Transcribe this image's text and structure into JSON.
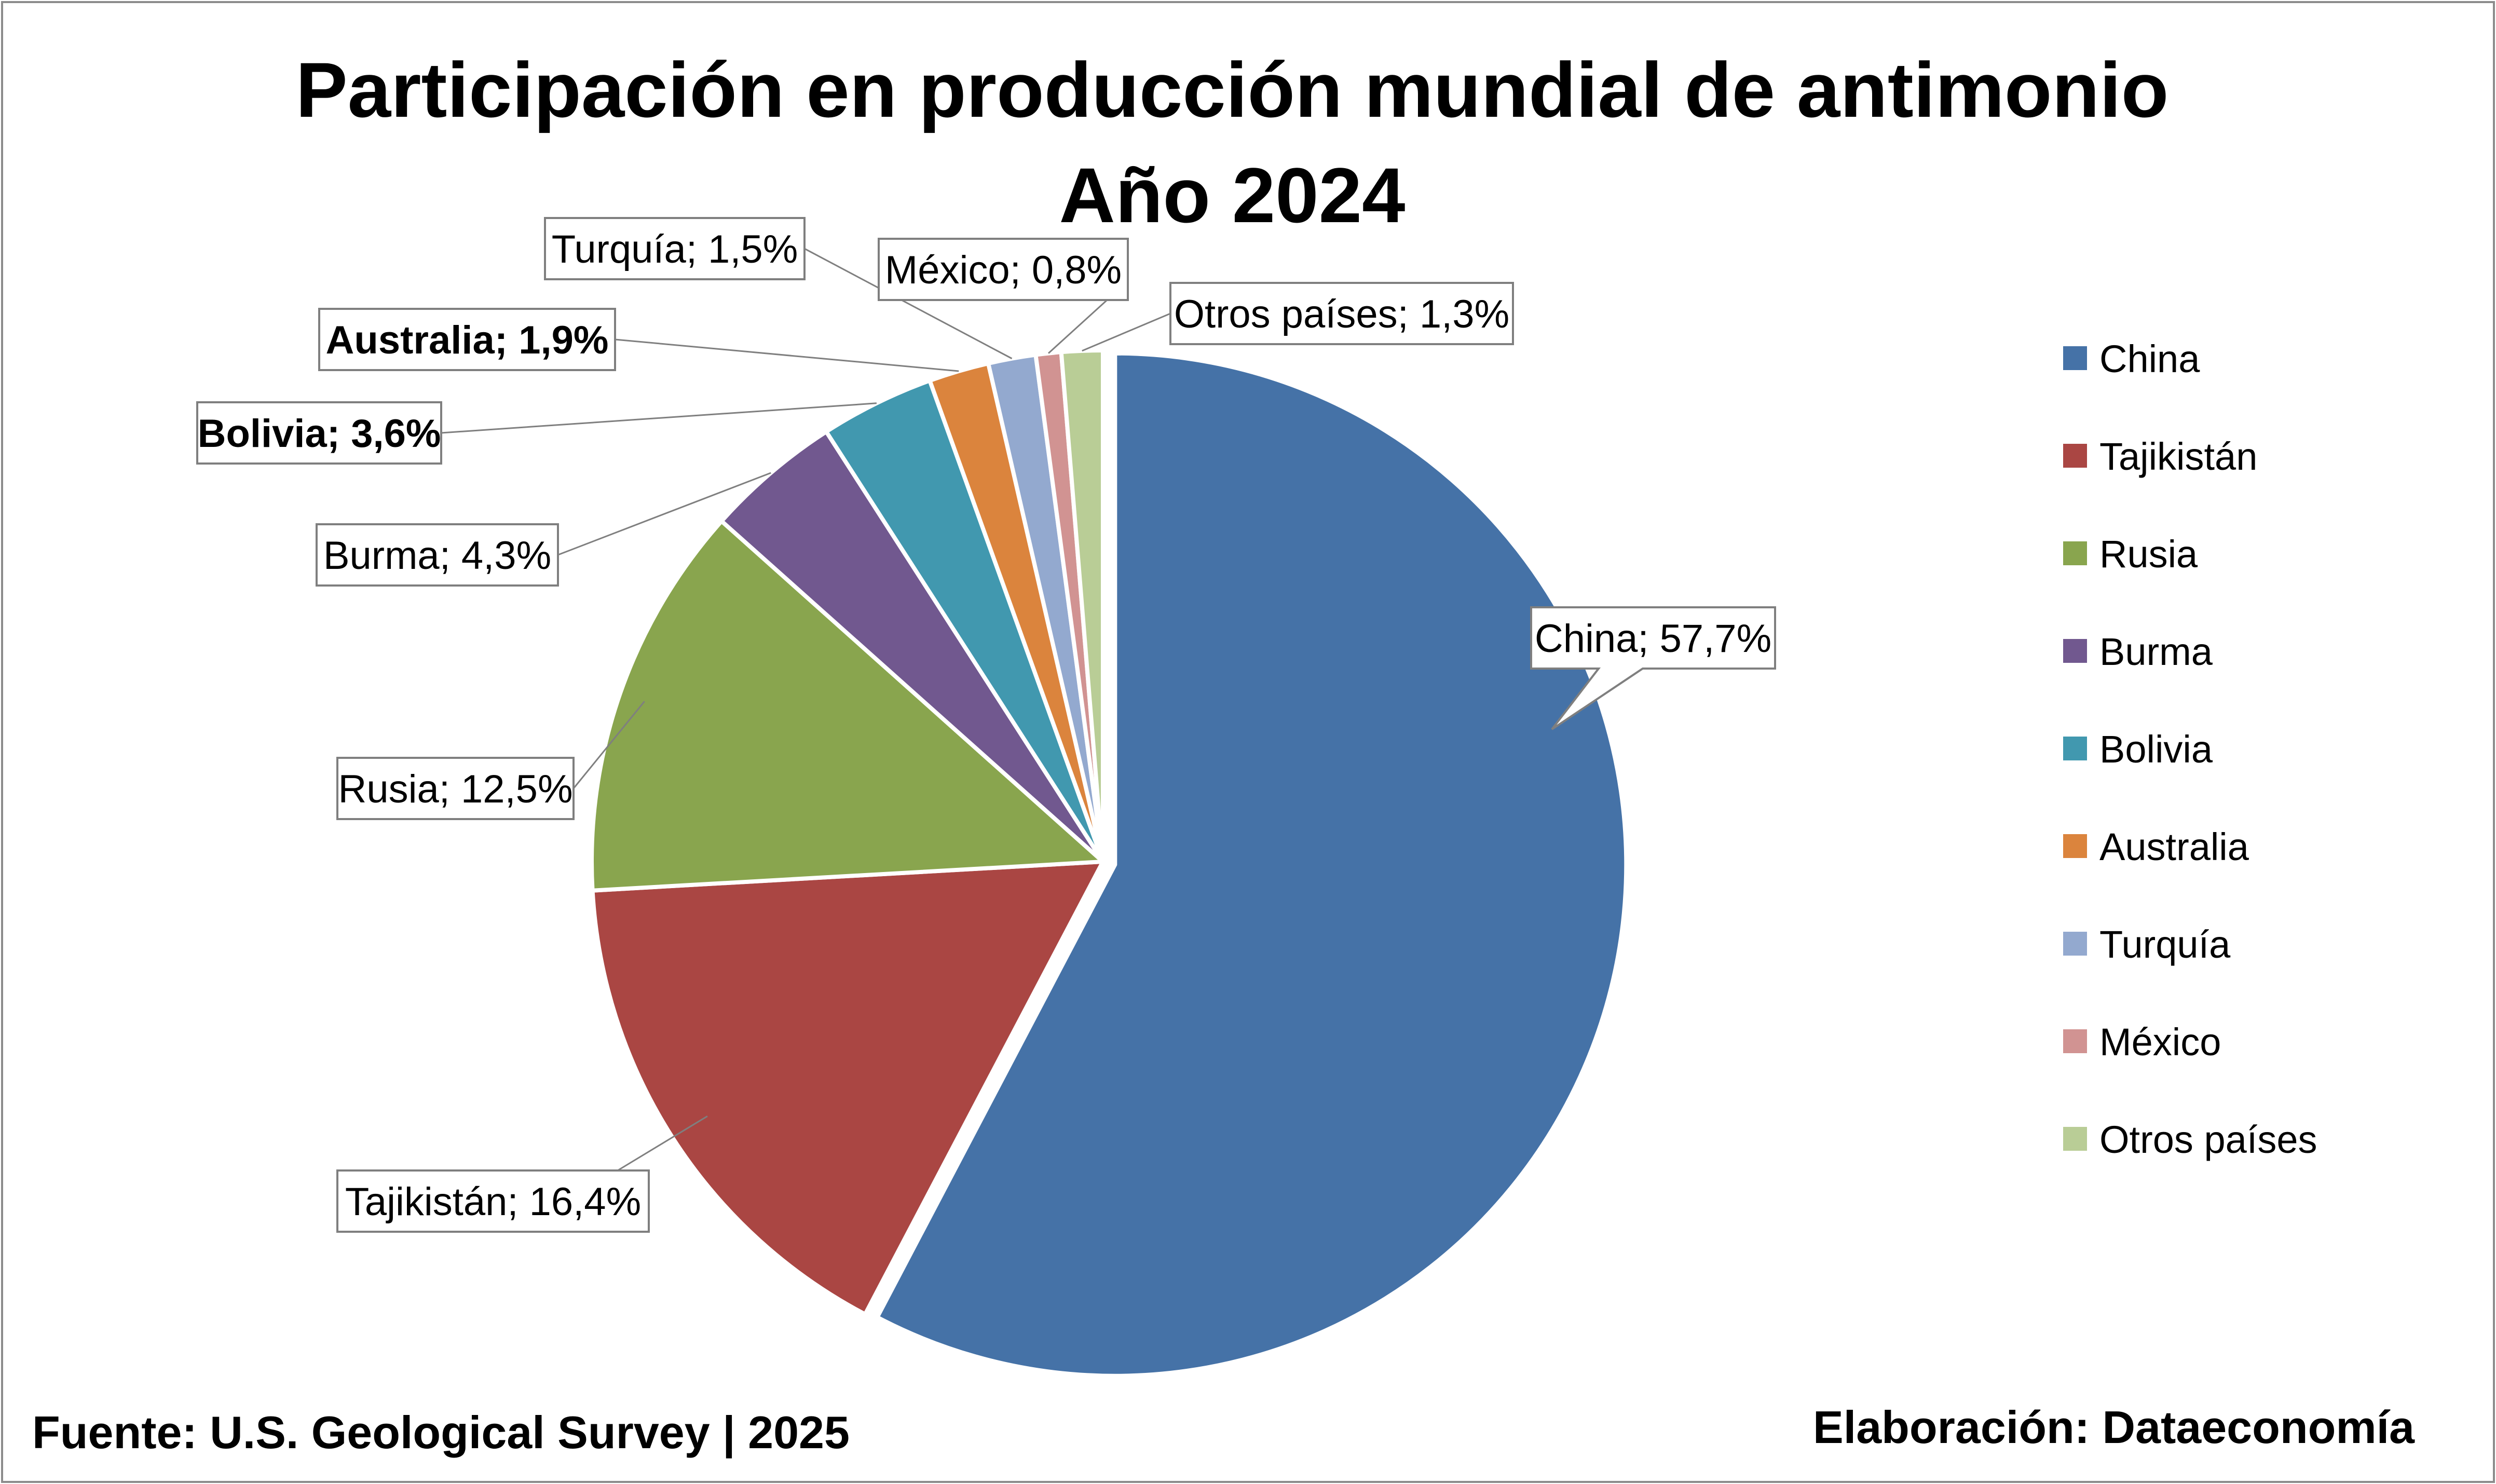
{
  "chart_data": {
    "type": "pie",
    "title": "Participación en producción mundial de antimonio",
    "subtitle": "Año 2024",
    "categories": [
      "China",
      "Tajikistán",
      "Rusia",
      "Burma",
      "Bolivia",
      "Australia",
      "Turquía",
      "México",
      "Otros países"
    ],
    "values": [
      57.7,
      16.4,
      12.5,
      4.3,
      3.6,
      1.9,
      1.5,
      0.8,
      1.3
    ],
    "colors": [
      "#4572a7",
      "#aa4643",
      "#89a54e",
      "#71588f",
      "#4198af",
      "#db843d",
      "#93a9cf",
      "#d19392",
      "#b9cd96"
    ],
    "data_labels": [
      "China; 57,7%",
      "Tajikistán; 16,4%",
      "Rusia; 12,5%",
      "Burma; 4,3%",
      "Bolivia; 3,6%",
      "Australia; 1,9%",
      "Turquía; 1,5%",
      "México; 0,8%",
      "Otros países; 1,3%"
    ],
    "bold_labels": [
      "Bolivia",
      "Australia"
    ],
    "legend_position": "right",
    "legend_entries": [
      "China",
      "Tajikistán",
      "Rusia",
      "Burma",
      "Bolivia",
      "Australia",
      "Turquía",
      "México",
      "Otros países"
    ],
    "exploded_slices": [
      "China"
    ]
  },
  "footer": {
    "source": "Fuente: U.S. Geological Survey | 2025",
    "credit": "Elaboración: Dataeconomía"
  }
}
